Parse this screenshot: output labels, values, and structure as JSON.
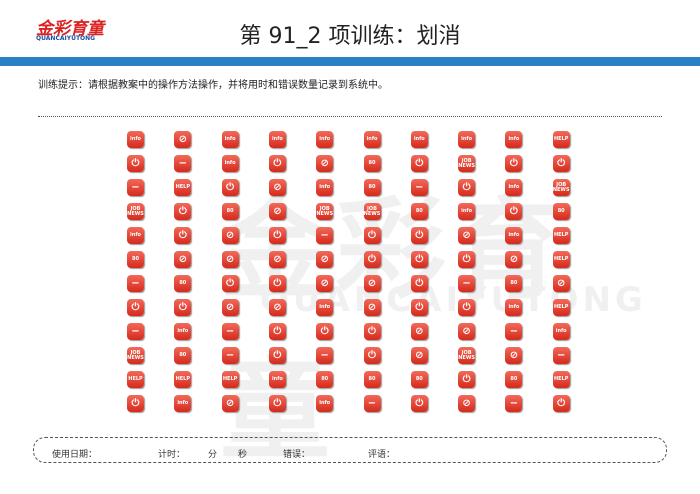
{
  "header": {
    "logo": "金彩育童",
    "logo_sub": "QUANCAIYUTONG",
    "title": "第 91_2 项训练：划消"
  },
  "instruction": "训练提示：请根据教案中的操作方法操作，并将用时和错误数量记录到系统中。",
  "icons": [
    [
      "info",
      "⊘",
      "info",
      "info",
      "info",
      "info",
      "info",
      "info",
      "info",
      "HELP"
    ],
    [
      "⏻",
      "−",
      "info",
      "⏻",
      "⊘",
      "80",
      "⏻",
      "JOB NEWS",
      "⏻",
      "⏻"
    ],
    [
      "−",
      "HELP",
      "⏻",
      "⊘",
      "info",
      "80",
      "−",
      "⏻",
      "info",
      "JOB NEWS"
    ],
    [
      "JOB NEWS",
      "⏻",
      "80",
      "⊘",
      "JOB NEWS",
      "JOB NEWS",
      "80",
      "info",
      "⏻",
      "80"
    ],
    [
      "info",
      "⏻",
      "⊘",
      "⏻",
      "−",
      "⏻",
      "⏻",
      "⊘",
      "info",
      "HELP"
    ],
    [
      "80",
      "⊘",
      "⊘",
      "⊘",
      "⊘",
      "⏻",
      "⏻",
      "⏻",
      "⊘",
      "HELP"
    ],
    [
      "−",
      "80",
      "⏻",
      "⏻",
      "⊘",
      "⊘",
      "⏻",
      "−",
      "80",
      "⊘"
    ],
    [
      "⏻",
      "⏻",
      "⊘",
      "⊘",
      "info",
      "⊘",
      "⏻",
      "⏻",
      "info",
      "HELP"
    ],
    [
      "−",
      "info",
      "−",
      "⏻",
      "⏻",
      "⏻",
      "⊘",
      "⊘",
      "−",
      "info"
    ],
    [
      "JOB NEWS",
      "80",
      "−",
      "⏻",
      "−",
      "⏻",
      "⊘",
      "JOB NEWS",
      "⊘",
      "−"
    ],
    [
      "HELP",
      "HELP",
      "HELP",
      "info",
      "80",
      "80",
      "80",
      "⏻",
      "80",
      "HELP"
    ],
    [
      "⏻",
      "info",
      "⊘",
      "⏻",
      "info",
      "−",
      "⏻",
      "⊘",
      "−",
      "⏻"
    ]
  ],
  "footer": {
    "date": "使用日期：",
    "time": "计时：",
    "minutes": "分",
    "seconds": "秒",
    "errors": "错误：",
    "comment": "评语："
  }
}
